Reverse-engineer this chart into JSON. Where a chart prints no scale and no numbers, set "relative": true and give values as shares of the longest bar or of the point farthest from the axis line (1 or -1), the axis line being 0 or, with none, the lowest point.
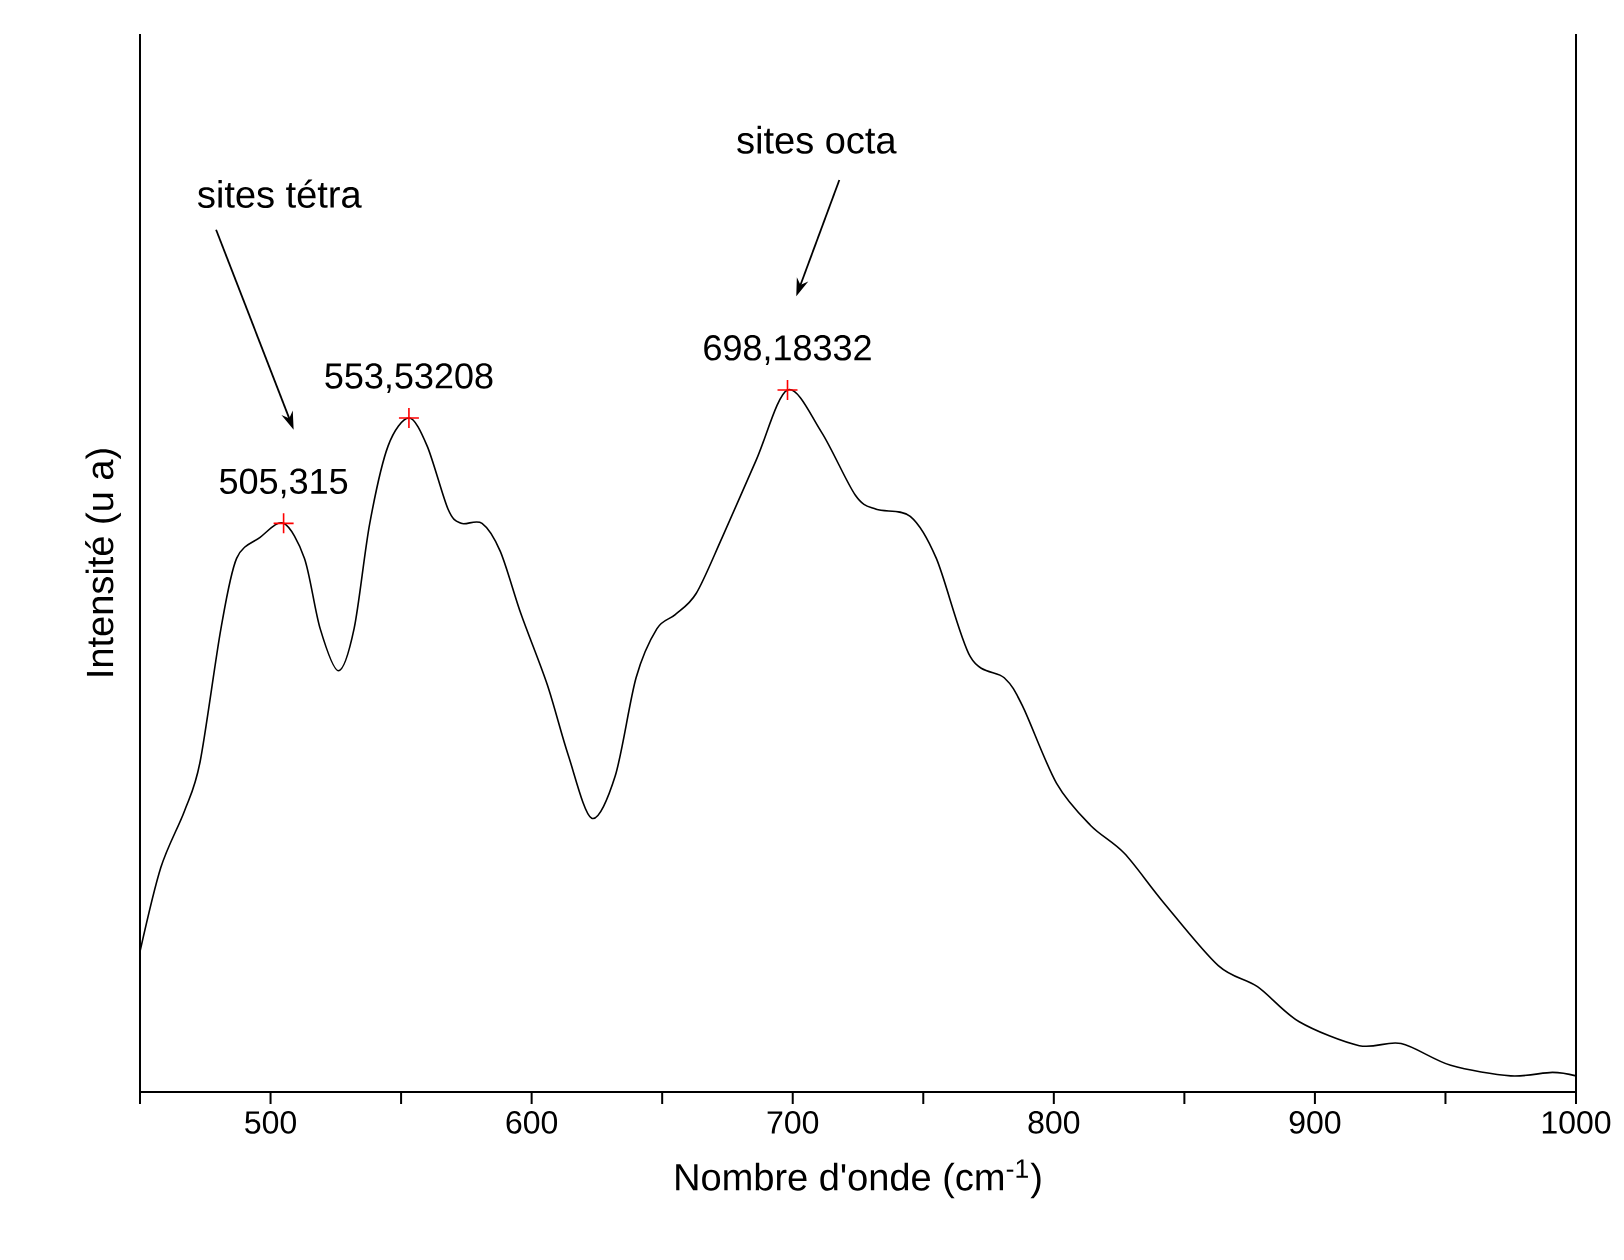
{
  "chart_data": {
    "type": "line",
    "relative": true,
    "xlabel": "Nombre d'onde (cm$^{-1}$)",
    "ylabel": "Intensité (u a)",
    "xlim": [
      450,
      1000
    ],
    "xticks": [
      {
        "value": 450,
        "label": null
      },
      500,
      {
        "value": 550,
        "label": null
      },
      600,
      {
        "value": 650,
        "label": null
      },
      700,
      {
        "value": 750,
        "label": null
      },
      800,
      {
        "value": 850,
        "label": null
      },
      900,
      {
        "value": 950,
        "label": null
      },
      1000
    ],
    "series": [
      {
        "color": "#000000",
        "x": [
          450,
          458,
          467,
          473,
          481,
          487,
          496,
          505,
          513,
          519,
          526,
          532,
          538,
          545,
          553,
          560,
          568,
          573,
          581,
          588,
          596,
          606,
          614,
          623,
          632,
          640,
          648,
          655,
          663,
          673,
          686,
          698,
          711,
          724,
          732,
          745,
          755,
          768,
          781,
          788,
          801,
          814,
          827,
          842,
          863,
          878,
          894,
          917,
          933,
          952,
          975,
          991,
          1000
        ],
        "values": [
          0.2,
          0.32,
          0.4,
          0.47,
          0.66,
          0.76,
          0.79,
          0.81,
          0.76,
          0.66,
          0.6,
          0.66,
          0.81,
          0.92,
          0.96,
          0.92,
          0.83,
          0.81,
          0.81,
          0.77,
          0.68,
          0.58,
          0.48,
          0.39,
          0.45,
          0.59,
          0.66,
          0.68,
          0.71,
          0.79,
          0.9,
          1.0,
          0.94,
          0.85,
          0.83,
          0.82,
          0.76,
          0.62,
          0.59,
          0.55,
          0.44,
          0.38,
          0.34,
          0.27,
          0.18,
          0.15,
          0.1,
          0.066,
          0.069,
          0.038,
          0.023,
          0.028,
          0.023
        ]
      },
      {
        "type": "scatter",
        "color": "#ff0000",
        "marker": "cross",
        "x": [
          505,
          553,
          698
        ],
        "values": [
          0.81,
          0.96,
          1.0
        ]
      }
    ],
    "annotations": [
      "sites tétra",
      "sites octa",
      {
        "text": "505,315",
        "x": 505,
        "y": 0.81
      },
      {
        "text": "553,53208",
        "x": 553,
        "y": 0.96
      },
      {
        "text": "698,18332",
        "x": 698,
        "y": 1.0
      }
    ]
  }
}
